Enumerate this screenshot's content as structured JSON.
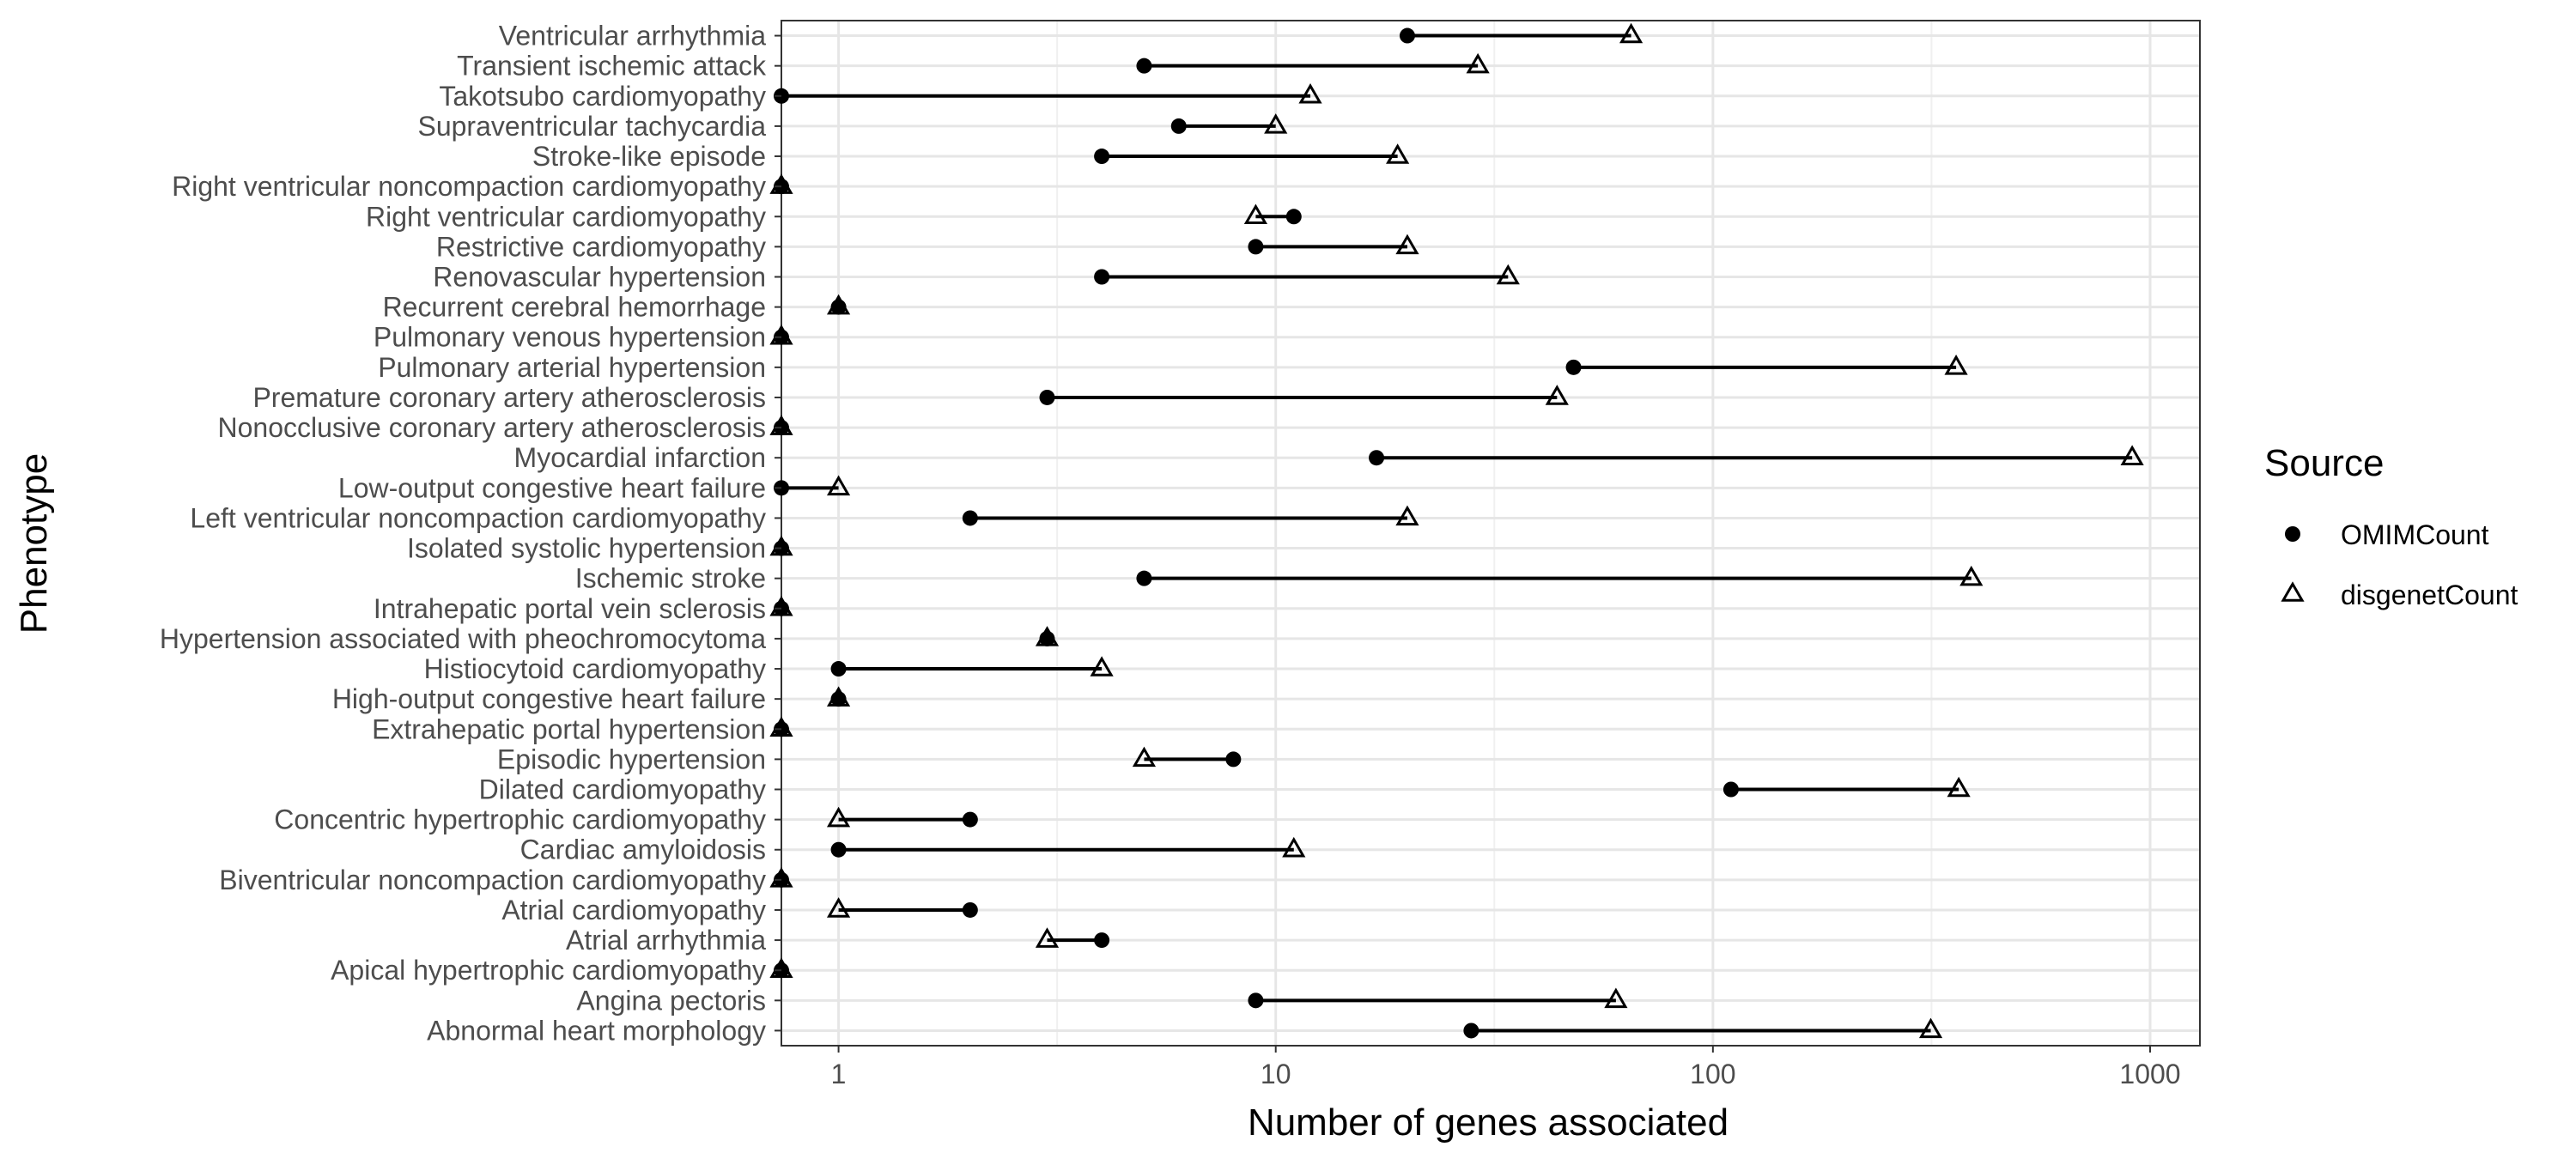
{
  "chart_data": {
    "type": "dumbbell",
    "xlabel": "Number of genes associated",
    "ylabel": "Phenotype",
    "xscale": "log10",
    "xlim": [
      0.74,
      1300
    ],
    "xticks": [
      {
        "value": 1,
        "label": "1"
      },
      {
        "value": 10,
        "label": "10"
      },
      {
        "value": 100,
        "label": "100"
      },
      {
        "value": 1000,
        "label": "1000"
      }
    ],
    "grid": true,
    "legend": {
      "title": "Source",
      "position": "right",
      "entries": [
        {
          "name": "OMIMCount",
          "shape": "filled-circle"
        },
        {
          "name": "disgenetCount",
          "shape": "open-triangle"
        }
      ]
    },
    "series": [
      {
        "name": "OMIMCount",
        "shape": "filled-circle"
      },
      {
        "name": "disgenetCount",
        "shape": "open-triangle"
      }
    ],
    "rows": [
      {
        "phenotype": "Ventricular arrhythmia",
        "OMIMCount": 20,
        "disgenetCount": 65
      },
      {
        "phenotype": "Transient ischemic attack",
        "OMIMCount": 5,
        "disgenetCount": 29
      },
      {
        "phenotype": "Takotsubo cardiomyopathy",
        "OMIMCount": 0.74,
        "disgenetCount": 12
      },
      {
        "phenotype": "Supraventricular tachycardia",
        "OMIMCount": 6,
        "disgenetCount": 10
      },
      {
        "phenotype": "Stroke-like episode",
        "OMIMCount": 4,
        "disgenetCount": 19
      },
      {
        "phenotype": "Right ventricular noncompaction cardiomyopathy",
        "OMIMCount": 0.74,
        "disgenetCount": 0.74
      },
      {
        "phenotype": "Right ventricular cardiomyopathy",
        "OMIMCount": 11,
        "disgenetCount": 9
      },
      {
        "phenotype": "Restrictive cardiomyopathy",
        "OMIMCount": 9,
        "disgenetCount": 20
      },
      {
        "phenotype": "Renovascular hypertension",
        "OMIMCount": 4,
        "disgenetCount": 34
      },
      {
        "phenotype": "Recurrent cerebral hemorrhage",
        "OMIMCount": 1,
        "disgenetCount": 1
      },
      {
        "phenotype": "Pulmonary venous hypertension",
        "OMIMCount": 0.74,
        "disgenetCount": 0.74
      },
      {
        "phenotype": "Pulmonary arterial hypertension",
        "OMIMCount": 48,
        "disgenetCount": 360
      },
      {
        "phenotype": "Premature coronary artery atherosclerosis",
        "OMIMCount": 3,
        "disgenetCount": 44
      },
      {
        "phenotype": "Nonocclusive coronary artery atherosclerosis",
        "OMIMCount": 0.74,
        "disgenetCount": 0.74
      },
      {
        "phenotype": "Myocardial infarction",
        "OMIMCount": 17,
        "disgenetCount": 910
      },
      {
        "phenotype": "Low-output congestive heart failure",
        "OMIMCount": 0.74,
        "disgenetCount": 1
      },
      {
        "phenotype": "Left ventricular noncompaction cardiomyopathy",
        "OMIMCount": 2,
        "disgenetCount": 20
      },
      {
        "phenotype": "Isolated systolic hypertension",
        "OMIMCount": 0.74,
        "disgenetCount": 0.74
      },
      {
        "phenotype": "Ischemic stroke",
        "OMIMCount": 5,
        "disgenetCount": 390
      },
      {
        "phenotype": "Intrahepatic portal vein sclerosis",
        "OMIMCount": 0.74,
        "disgenetCount": 0.74
      },
      {
        "phenotype": "Hypertension associated with pheochromocytoma",
        "OMIMCount": 3,
        "disgenetCount": 3
      },
      {
        "phenotype": "Histiocytoid cardiomyopathy",
        "OMIMCount": 1,
        "disgenetCount": 4
      },
      {
        "phenotype": "High-output congestive heart failure",
        "OMIMCount": 1,
        "disgenetCount": 1
      },
      {
        "phenotype": "Extrahepatic portal hypertension",
        "OMIMCount": 0.74,
        "disgenetCount": 0.74
      },
      {
        "phenotype": "Episodic hypertension",
        "OMIMCount": 8,
        "disgenetCount": 5
      },
      {
        "phenotype": "Dilated cardiomyopathy",
        "OMIMCount": 110,
        "disgenetCount": 365
      },
      {
        "phenotype": "Concentric hypertrophic cardiomyopathy",
        "OMIMCount": 2,
        "disgenetCount": 1
      },
      {
        "phenotype": "Cardiac amyloidosis",
        "OMIMCount": 1,
        "disgenetCount": 11
      },
      {
        "phenotype": "Biventricular noncompaction cardiomyopathy",
        "OMIMCount": 0.74,
        "disgenetCount": 0.74
      },
      {
        "phenotype": "Atrial cardiomyopathy",
        "OMIMCount": 2,
        "disgenetCount": 1
      },
      {
        "phenotype": "Atrial arrhythmia",
        "OMIMCount": 4,
        "disgenetCount": 3
      },
      {
        "phenotype": "Apical hypertrophic cardiomyopathy",
        "OMIMCount": 0.74,
        "disgenetCount": 0.74
      },
      {
        "phenotype": "Angina pectoris",
        "OMIMCount": 9,
        "disgenetCount": 60
      },
      {
        "phenotype": "Abnormal heart morphology",
        "OMIMCount": 28,
        "disgenetCount": 315
      }
    ]
  }
}
